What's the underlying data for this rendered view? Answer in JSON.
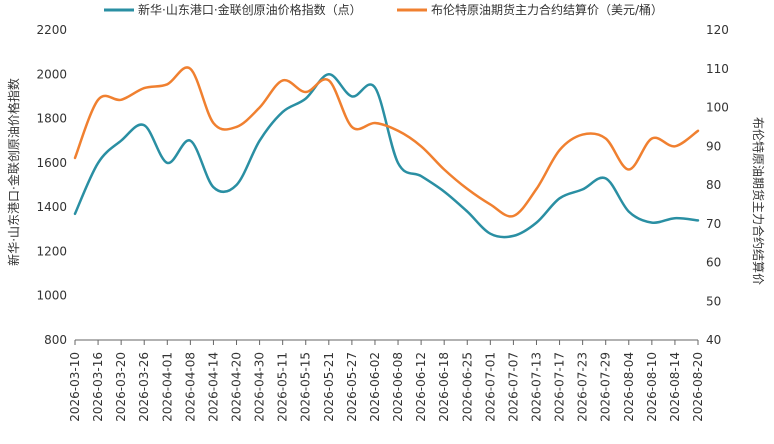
{
  "chart_data": {
    "type": "line",
    "legend_position": "top-center",
    "grid": false,
    "x": [
      "2026-03-10",
      "2026-03-16",
      "2026-03-20",
      "2026-03-26",
      "2026-04-01",
      "2026-04-08",
      "2026-04-14",
      "2026-04-20",
      "2026-04-30",
      "2026-05-11",
      "2026-05-15",
      "2026-05-21",
      "2026-05-27",
      "2026-06-02",
      "2026-06-08",
      "2026-06-12",
      "2026-06-18",
      "2026-06-25",
      "2026-07-01",
      "2026-07-07",
      "2026-07-13",
      "2026-07-17",
      "2026-07-23",
      "2026-07-29",
      "2026-08-04",
      "2026-08-10",
      "2026-08-14",
      "2026-08-20"
    ],
    "ylabel_left": "新华·山东港口·金联创原油价格指数",
    "ylabel_right": "布伦特原油期货主力合约结算价",
    "ylim_left": [
      800,
      2200
    ],
    "ylim_right": [
      40,
      120
    ],
    "yticks_left": [
      "800",
      "1000",
      "1200",
      "1400",
      "1600",
      "1800",
      "2000",
      "2200"
    ],
    "yticks_right": [
      "40",
      "50",
      "60",
      "70",
      "80",
      "90",
      "100",
      "110",
      "120"
    ],
    "series": [
      {
        "name": "新华·山东港口·金联创原油价格指数（点）",
        "color": "#2a8fa3",
        "axis": "left",
        "values": [
          1370,
          1600,
          1700,
          1770,
          1600,
          1700,
          1490,
          1500,
          1700,
          1830,
          1890,
          2000,
          1900,
          1940,
          1600,
          1540,
          1470,
          1380,
          1280,
          1270,
          1330,
          1440,
          1480,
          1530,
          1380,
          1330,
          1350,
          1340
        ]
      },
      {
        "name": "布伦特原油期货主力合约结算价（美元/桶）",
        "color": "#f08030",
        "axis": "right",
        "values": [
          87,
          102,
          102,
          105,
          106,
          110,
          96,
          95,
          100,
          107,
          104,
          107,
          95,
          96,
          94,
          90,
          84,
          79,
          75,
          72,
          79,
          89,
          93,
          92,
          84,
          92,
          90,
          94
        ]
      }
    ]
  }
}
